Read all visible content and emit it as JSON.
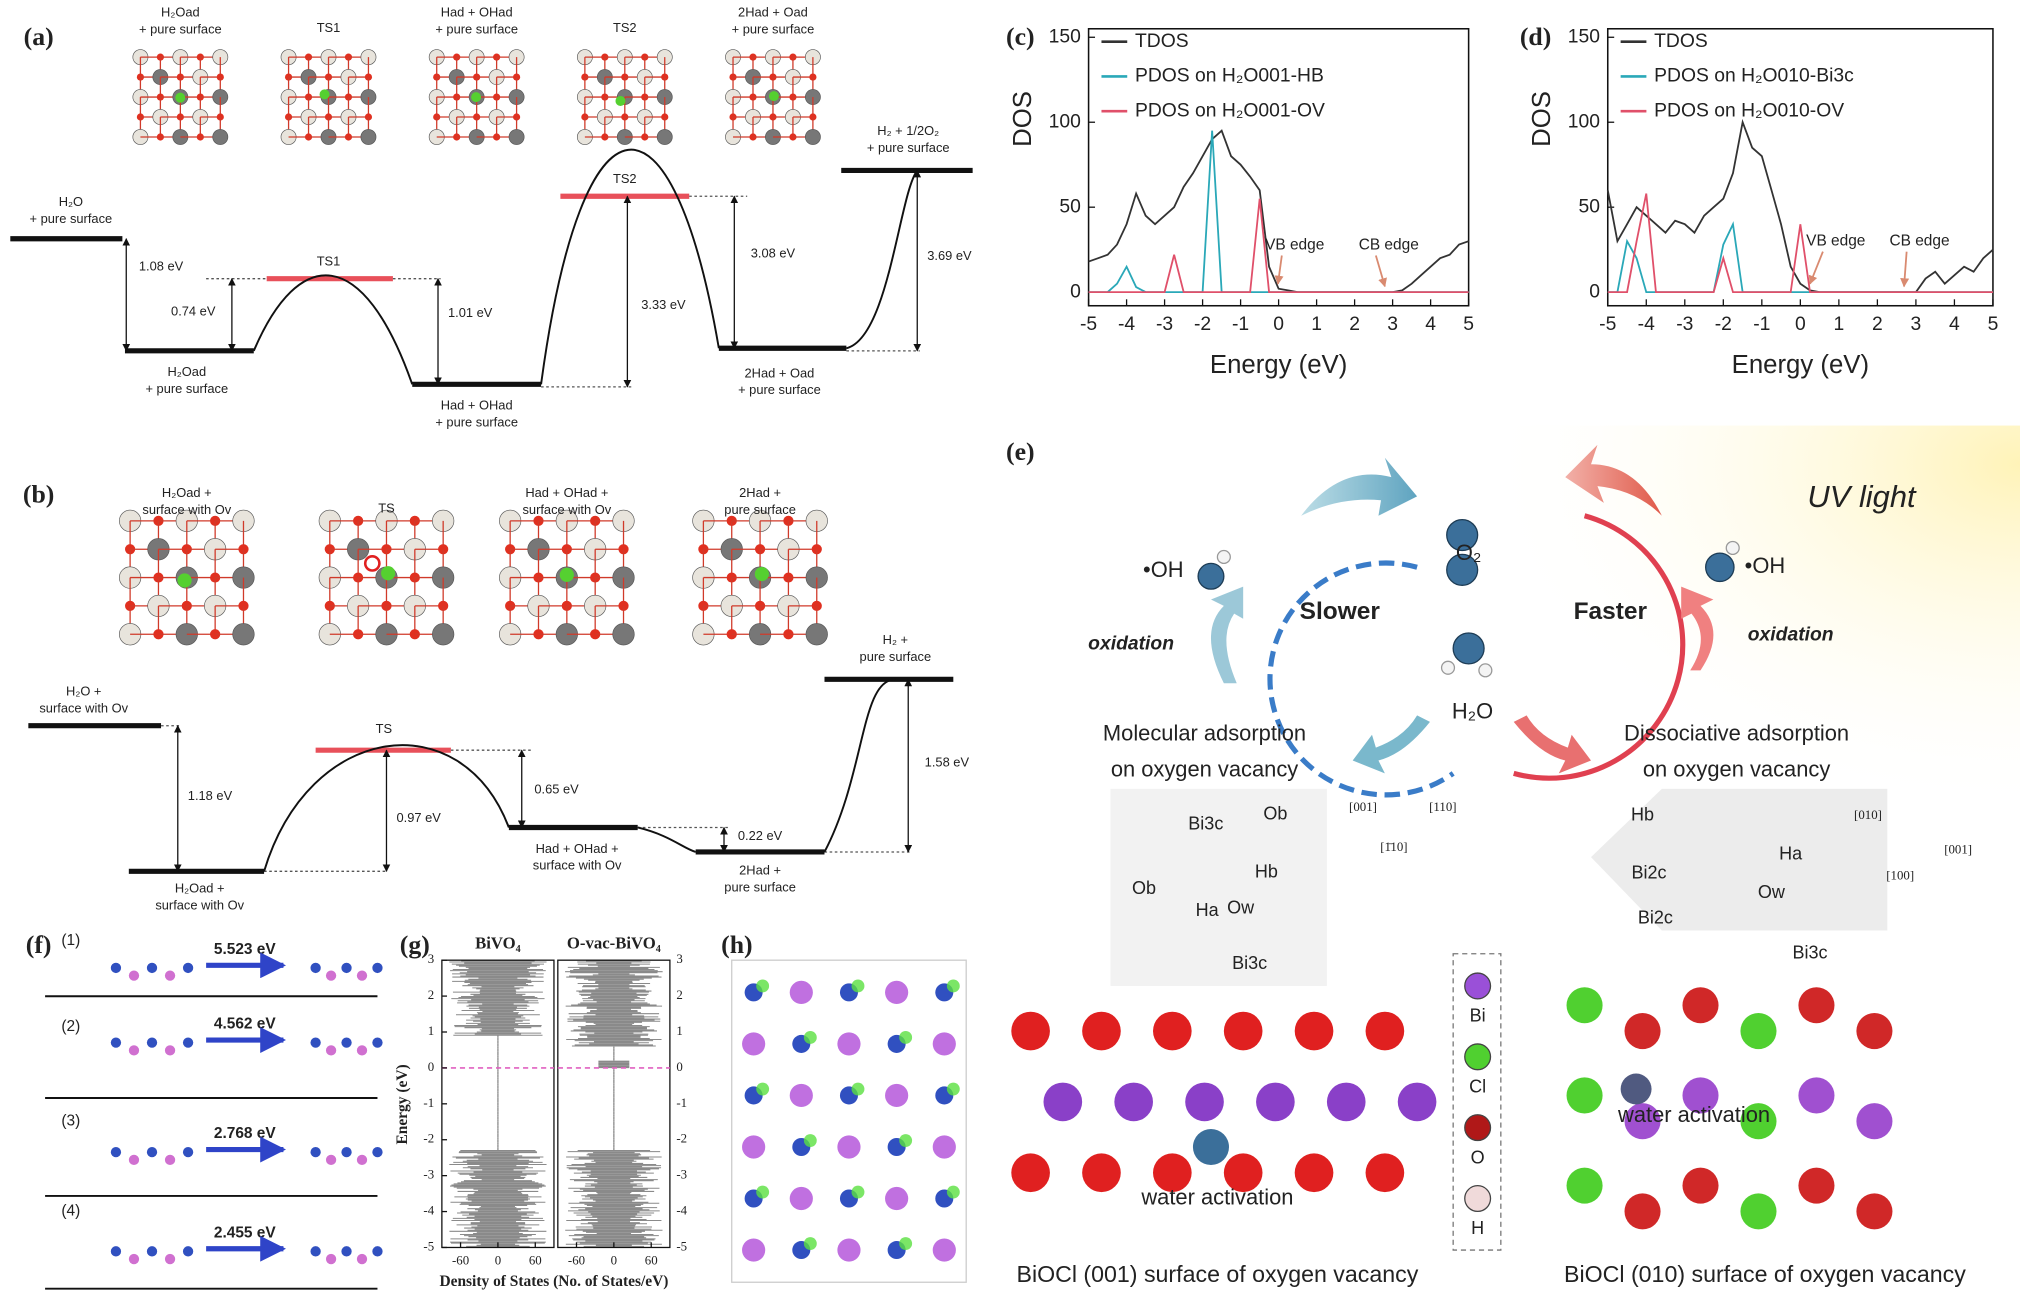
{
  "panel_labels": {
    "a": "(a)",
    "b": "(b)",
    "c": "(c)",
    "d": "(d)",
    "e": "(e)",
    "f": "(f)",
    "g": "(g)",
    "h": "(h)"
  },
  "panel_a": {
    "structure_labels": [
      [
        "H₂Oad",
        "+ pure surface"
      ],
      [
        "TS1"
      ],
      [
        "Had + OHad",
        "+ pure surface"
      ],
      [
        "TS2"
      ],
      [
        "2Had + Oad",
        "+ pure surface"
      ]
    ],
    "states": [
      [
        "H₂O",
        "+ pure surface"
      ],
      [
        "H₂Oad",
        "+ pure surface"
      ],
      [
        "TS1"
      ],
      [
        "Had + OHad",
        "+ pure surface"
      ],
      [
        "TS2"
      ],
      [
        "2Had + Oad",
        "+ pure surface"
      ],
      [
        "H₂ + 1/2O₂",
        "+ pure surface"
      ]
    ],
    "barriers": [
      "1.08 eV",
      "0.74 eV",
      "1.01 eV",
      "3.33 eV",
      "3.08 eV",
      "3.69 eV"
    ]
  },
  "panel_b": {
    "structure_labels": [
      [
        "H₂Oad +",
        "surface with Ov"
      ],
      [
        "TS"
      ],
      [
        "Had + OHad +",
        "surface with Ov"
      ],
      [
        "2Had +",
        "pure surface"
      ]
    ],
    "states": [
      [
        "H₂O +",
        "surface with Ov"
      ],
      [
        "H₂Oad +",
        "surface with Ov"
      ],
      [
        "TS"
      ],
      [
        "Had + OHad +",
        "surface with Ov"
      ],
      [
        "2Had +",
        "pure surface"
      ],
      [
        "H₂ +",
        "pure surface"
      ]
    ],
    "barriers": [
      "1.18 eV",
      "0.97 eV",
      "0.65 eV",
      "0.22 eV",
      "1.58 eV"
    ]
  },
  "chart_data": [
    {
      "type": "line",
      "xlabel": "Energy (eV)",
      "ylabel": "DOS",
      "legend": "upper left",
      "x": [
        -5,
        -4.75,
        -4.5,
        -4.25,
        -4,
        -3.75,
        -3.5,
        -3.25,
        -3,
        -2.75,
        -2.5,
        -2.25,
        -2,
        -1.75,
        -1.5,
        -1.25,
        -1,
        -0.75,
        -0.5,
        -0.25,
        0,
        0.25,
        0.5,
        0.75,
        1,
        1.25,
        1.5,
        1.75,
        2,
        2.25,
        2.5,
        2.75,
        3,
        3.25,
        3.5,
        3.75,
        4,
        4.25,
        4.5,
        4.75,
        5
      ],
      "series": [
        {
          "name": "TDOS",
          "color": "#333333",
          "values": [
            18,
            20,
            22,
            28,
            40,
            58,
            45,
            40,
            45,
            50,
            62,
            70,
            80,
            90,
            95,
            80,
            75,
            68,
            60,
            15,
            2,
            1,
            0,
            0,
            0,
            0,
            0,
            0,
            0,
            0,
            0,
            0,
            0,
            1,
            5,
            10,
            15,
            20,
            22,
            28,
            30
          ]
        },
        {
          "name": "PDOS on H₂O001-HB",
          "color": "#2aa8b8",
          "values": [
            0,
            0,
            0,
            5,
            15,
            3,
            0,
            0,
            0,
            0,
            0,
            0,
            0,
            95,
            0,
            0,
            0,
            0,
            0,
            0,
            0,
            0,
            0,
            0,
            0,
            0,
            0,
            0,
            0,
            0,
            0,
            0,
            0,
            0,
            0,
            0,
            0,
            0,
            0,
            0,
            0
          ]
        },
        {
          "name": "PDOS on H₂O001-OV",
          "color": "#e0506a",
          "values": [
            0,
            0,
            0,
            0,
            0,
            0,
            0,
            0,
            0,
            22,
            0,
            0,
            0,
            0,
            0,
            0,
            0,
            0,
            55,
            0,
            0,
            0,
            0,
            0,
            0,
            0,
            0,
            0,
            0,
            0,
            0,
            0,
            0,
            0,
            0,
            0,
            0,
            0,
            0,
            0,
            0
          ]
        }
      ],
      "xlim": [
        -5,
        5
      ],
      "ylim": [
        -8,
        155
      ],
      "xticks": [
        -5,
        -4,
        -3,
        -2,
        -1,
        0,
        1,
        2,
        3,
        4,
        5
      ],
      "yticks": [
        0,
        50,
        100,
        150
      ],
      "annotations": [
        "VB edge",
        "CB edge"
      ]
    },
    {
      "type": "line",
      "xlabel": "Energy (eV)",
      "ylabel": "DOS",
      "legend": "upper left",
      "x": [
        -5,
        -4.75,
        -4.5,
        -4.25,
        -4,
        -3.75,
        -3.5,
        -3.25,
        -3,
        -2.75,
        -2.5,
        -2.25,
        -2,
        -1.75,
        -1.5,
        -1.25,
        -1,
        -0.75,
        -0.5,
        -0.25,
        0,
        0.25,
        0.5,
        0.75,
        1,
        1.25,
        1.5,
        1.75,
        2,
        2.25,
        2.5,
        2.75,
        3,
        3.25,
        3.5,
        3.75,
        4,
        4.25,
        4.5,
        4.75,
        5
      ],
      "series": [
        {
          "name": "TDOS",
          "color": "#333333",
          "values": [
            60,
            30,
            40,
            50,
            45,
            40,
            35,
            42,
            40,
            35,
            45,
            50,
            55,
            70,
            100,
            85,
            80,
            60,
            40,
            15,
            5,
            1,
            0,
            0,
            0,
            0,
            0,
            0,
            0,
            0,
            0,
            0,
            0,
            8,
            12,
            5,
            10,
            15,
            12,
            20,
            25
          ]
        },
        {
          "name": "PDOS on H₂O010-Bi3c",
          "color": "#2aa8b8",
          "values": [
            0,
            0,
            30,
            20,
            0,
            0,
            0,
            0,
            0,
            0,
            0,
            0,
            28,
            40,
            0,
            0,
            0,
            0,
            0,
            0,
            0,
            0,
            0,
            0,
            0,
            0,
            0,
            0,
            0,
            0,
            0,
            0,
            0,
            0,
            0,
            0,
            0,
            0,
            0,
            0,
            0
          ]
        },
        {
          "name": "PDOS on H₂O010-OV",
          "color": "#e0506a",
          "values": [
            0,
            0,
            0,
            30,
            58,
            0,
            0,
            0,
            0,
            0,
            0,
            0,
            20,
            0,
            0,
            0,
            0,
            0,
            0,
            0,
            40,
            0,
            0,
            0,
            0,
            0,
            0,
            0,
            0,
            0,
            0,
            0,
            0,
            0,
            0,
            0,
            0,
            0,
            0,
            0,
            0
          ]
        }
      ],
      "xlim": [
        -5,
        5
      ],
      "ylim": [
        -8,
        155
      ],
      "xticks": [
        -5,
        -4,
        -3,
        -2,
        -1,
        0,
        1,
        2,
        3,
        4,
        5
      ],
      "yticks": [
        0,
        50,
        100,
        150
      ],
      "annotations": [
        "VB edge",
        "CB edge"
      ]
    },
    {
      "type": "dos",
      "panels": [
        "BiVO₄",
        "O-vac-BiVO₄"
      ],
      "ylabel": "Energy (eV)",
      "xlabel": "Density of States (No. of States/eV)",
      "ylim": [
        -5,
        3
      ],
      "yticks": [
        -5,
        -4,
        -3,
        -2,
        -1,
        0,
        1,
        2,
        3
      ],
      "xlim": [
        -90,
        90
      ],
      "xticks": [
        -60,
        0,
        60
      ]
    }
  ],
  "panel_e": {
    "light": "UV light",
    "radical_left": "•OH",
    "o2": "O₂",
    "radical_right": "•OH",
    "slower": "Slower",
    "faster": "Faster",
    "oxidation_left": "oxidation",
    "oxidation_right": "oxidation",
    "water": "H₂O",
    "molecular": [
      "Molecular adsorption",
      "on oxygen vacancy"
    ],
    "dissociative": [
      "Dissociative adsorption",
      "on oxygen vacancy"
    ],
    "inset_left": [
      "Bi3c",
      "Ob",
      "Ob",
      "Hb",
      "Ha",
      "Ow",
      "Bi3c"
    ],
    "axes_left": [
      "[001]",
      "[110]",
      "[1̄10]"
    ],
    "inset_right": [
      "Hb",
      "Ha",
      "Bi2c",
      "Ow",
      "Bi2c",
      "Bi3c"
    ],
    "axes_right": [
      "[010]",
      "[001]",
      "[100]"
    ],
    "legend": [
      "Bi",
      "Cl",
      "O",
      "H"
    ],
    "activation": [
      "water activation",
      "water activation"
    ],
    "captions": [
      "BiOCl (001) surface of oxygen vacancy",
      "BiOCl (010) surface of oxygen vacancy"
    ]
  },
  "panel_f": {
    "steps": [
      {
        "index": "(1)",
        "energy": "5.523 eV"
      },
      {
        "index": "(2)",
        "energy": "4.562 eV"
      },
      {
        "index": "(3)",
        "energy": "2.768 eV"
      },
      {
        "index": "(4)",
        "energy": "2.455 eV"
      }
    ]
  }
}
